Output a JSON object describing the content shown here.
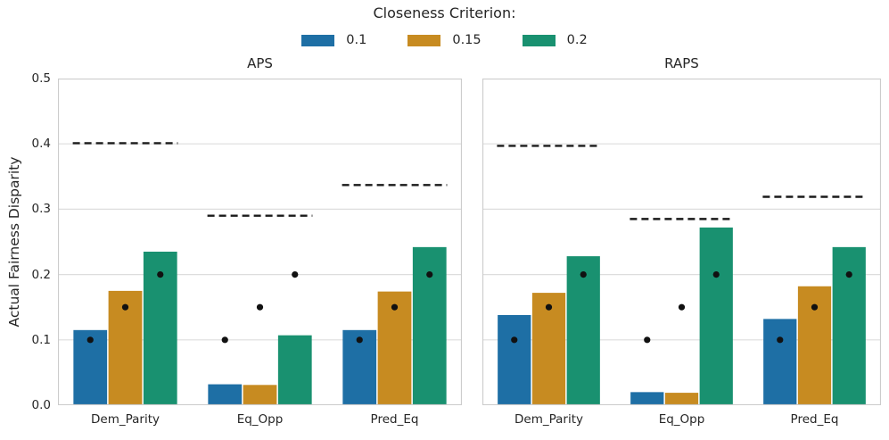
{
  "figure": {
    "background": "#ffffff"
  },
  "legend": {
    "title": "Closeness Criterion:",
    "items": [
      {
        "label": "0.1",
        "color": "#1e6fa5"
      },
      {
        "label": "0.15",
        "color": "#c78b21"
      },
      {
        "label": "0.2",
        "color": "#199170"
      }
    ]
  },
  "axes": {
    "ylabel": "Actual Fairness Disparity",
    "ylim": [
      0,
      0.5
    ],
    "yticks": [
      "0.0",
      "0.1",
      "0.2",
      "0.3",
      "0.4",
      "0.5"
    ],
    "grid": true,
    "grid_color": "#dddddd",
    "spine_color": "#cccccc",
    "text_color": "#262626",
    "threshold_color": "#1a1a1a",
    "marker_color": "#111111"
  },
  "chart_data": [
    {
      "type": "bar",
      "title": "APS",
      "categories": [
        "Dem_Parity",
        "Eq_Opp",
        "Pred_Eq"
      ],
      "series": [
        {
          "name": "0.1",
          "color": "#1e6fa5",
          "values": [
            0.115,
            0.032,
            0.115
          ],
          "marker_value": 0.1
        },
        {
          "name": "0.15",
          "color": "#c78b21",
          "values": [
            0.175,
            0.031,
            0.174
          ],
          "marker_value": 0.15
        },
        {
          "name": "0.2",
          "color": "#199170",
          "values": [
            0.235,
            0.107,
            0.242
          ],
          "marker_value": 0.2
        }
      ],
      "thresholds": [
        0.401,
        0.29,
        0.337
      ],
      "threshold_style": "dashed",
      "ylim": [
        0,
        0.5
      ],
      "legend_position": "top-center-figure",
      "grid": "horizontal"
    },
    {
      "type": "bar",
      "title": "RAPS",
      "categories": [
        "Dem_Parity",
        "Eq_Opp",
        "Pred_Eq"
      ],
      "series": [
        {
          "name": "0.1",
          "color": "#1e6fa5",
          "values": [
            0.138,
            0.02,
            0.132
          ],
          "marker_value": 0.1
        },
        {
          "name": "0.15",
          "color": "#c78b21",
          "values": [
            0.172,
            0.019,
            0.182
          ],
          "marker_value": 0.15
        },
        {
          "name": "0.2",
          "color": "#199170",
          "values": [
            0.228,
            0.272,
            0.242
          ],
          "marker_value": 0.2
        }
      ],
      "thresholds": [
        0.397,
        0.285,
        0.319
      ],
      "threshold_style": "dashed",
      "ylim": [
        0,
        0.5
      ],
      "legend_position": "top-center-figure",
      "grid": "horizontal"
    }
  ]
}
